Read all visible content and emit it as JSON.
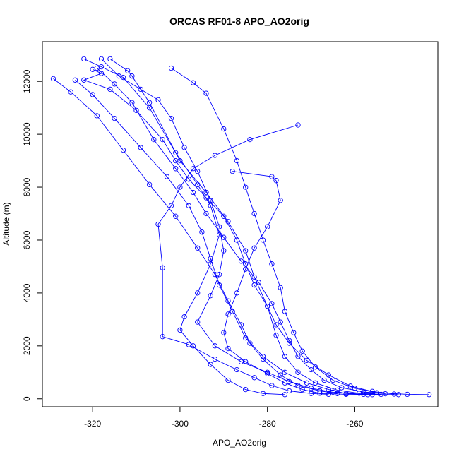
{
  "chart_data": {
    "type": "line",
    "title": "ORCAS RF01-8 APO_AO2orig",
    "xlabel": "APO_AO2orig",
    "ylabel": "Altitude (m)",
    "xlim": [
      -331.5,
      -241
    ],
    "ylim": [
      -300,
      13500
    ],
    "xticks": [
      -320,
      -300,
      -280,
      -260
    ],
    "yticks": [
      0,
      2000,
      4000,
      6000,
      8000,
      10000,
      12000
    ],
    "grid": false,
    "line_color": "#0000ff",
    "marker": "open-circle",
    "series": [
      {
        "values": [
          [
            -320,
            12450
          ],
          [
            -318,
            12300
          ],
          [
            -322,
            12050
          ],
          [
            -316,
            11700
          ],
          [
            -310,
            10900
          ],
          [
            -304,
            9800
          ],
          [
            -301,
            9000
          ],
          [
            -298,
            8300
          ],
          [
            -294,
            7600
          ],
          [
            -290,
            6900
          ],
          [
            -287,
            6000
          ],
          [
            -285,
            5100
          ],
          [
            -283,
            4300
          ],
          [
            -280,
            3500
          ],
          [
            -278,
            2800
          ],
          [
            -275,
            2100
          ],
          [
            -271,
            1450
          ],
          [
            -266,
            900
          ],
          [
            -261,
            480
          ],
          [
            -256,
            280
          ],
          [
            -251,
            180
          ]
        ]
      },
      {
        "values": [
          [
            -329,
            12100
          ],
          [
            -325,
            11600
          ],
          [
            -319,
            10700
          ],
          [
            -313,
            9400
          ],
          [
            -307,
            8100
          ],
          [
            -301,
            6900
          ],
          [
            -296,
            5700
          ],
          [
            -292,
            4700
          ],
          [
            -289,
            3700
          ],
          [
            -286,
            2800
          ],
          [
            -284,
            2100
          ],
          [
            -281,
            1500
          ],
          [
            -277,
            900
          ],
          [
            -273,
            500
          ],
          [
            -268,
            300
          ],
          [
            -264,
            200
          ]
        ]
      },
      {
        "values": [
          [
            -318,
            12850
          ],
          [
            -314,
            12200
          ],
          [
            -309,
            11700
          ],
          [
            -305,
            11300
          ],
          [
            -302,
            10600
          ],
          [
            -299,
            9500
          ],
          [
            -296,
            8600
          ],
          [
            -293,
            7500
          ],
          [
            -291,
            6500
          ],
          [
            -290,
            5600
          ],
          [
            -291,
            4700
          ],
          [
            -293,
            3900
          ],
          [
            -296,
            2900
          ],
          [
            -292,
            2000
          ],
          [
            -286,
            1400
          ],
          [
            -280,
            1000
          ],
          [
            -275,
            650
          ],
          [
            -270,
            400
          ],
          [
            -265,
            250
          ],
          [
            -258,
            170
          ],
          [
            -250,
            160
          ]
        ]
      },
      {
        "values": [
          [
            -302,
            12500
          ],
          [
            -297,
            11950
          ],
          [
            -294,
            11550
          ],
          [
            -290,
            10200
          ],
          [
            -287,
            9000
          ],
          [
            -285,
            8000
          ],
          [
            -283,
            7000
          ],
          [
            -281,
            6000
          ],
          [
            -279,
            5100
          ],
          [
            -277,
            4200
          ],
          [
            -276,
            3300
          ],
          [
            -274,
            2500
          ],
          [
            -272,
            1800
          ],
          [
            -269,
            1200
          ],
          [
            -265,
            700
          ],
          [
            -260,
            400
          ],
          [
            -255,
            230
          ],
          [
            -248,
            170
          ],
          [
            -243,
            160
          ]
        ]
      },
      {
        "values": [
          [
            -273,
            10350
          ],
          [
            -284,
            9800
          ],
          [
            -292,
            9200
          ],
          [
            -297,
            8700
          ],
          [
            -300,
            8000
          ],
          [
            -302,
            7300
          ],
          [
            -305,
            6600
          ],
          [
            -304,
            4950
          ],
          [
            -304,
            2350
          ],
          [
            -298,
            2050
          ],
          [
            -292,
            1500
          ],
          [
            -287,
            1100
          ],
          [
            -283,
            800
          ],
          [
            -279,
            500
          ],
          [
            -275,
            300
          ],
          [
            -270,
            200
          ],
          [
            -266,
            170
          ]
        ]
      },
      {
        "values": [
          [
            -322,
            12850
          ],
          [
            -318,
            12550
          ],
          [
            -313,
            12150
          ],
          [
            -307,
            11000
          ],
          [
            -301,
            9300
          ],
          [
            -296,
            8100
          ],
          [
            -293,
            7300
          ],
          [
            -291,
            6200
          ],
          [
            -293,
            5100
          ],
          [
            -296,
            4000
          ],
          [
            -299,
            3100
          ],
          [
            -300,
            2600
          ],
          [
            -297,
            2000
          ],
          [
            -293,
            1300
          ],
          [
            -289,
            700
          ],
          [
            -285,
            350
          ],
          [
            -281,
            200
          ],
          [
            -276,
            160
          ]
        ]
      },
      {
        "values": [
          [
            -316,
            12850
          ],
          [
            -312,
            12400
          ],
          [
            -311,
            12200
          ],
          [
            -307,
            11200
          ],
          [
            -300,
            9000
          ],
          [
            -294,
            7800
          ],
          [
            -289,
            6700
          ],
          [
            -285,
            5600
          ],
          [
            -283,
            4600
          ],
          [
            -280,
            3500
          ],
          [
            -278,
            2400
          ],
          [
            -276,
            1600
          ],
          [
            -273,
            1000
          ],
          [
            -269,
            600
          ],
          [
            -264,
            330
          ],
          [
            -259,
            210
          ],
          [
            -254,
            170
          ]
        ]
      },
      {
        "values": [
          [
            -324,
            12050
          ],
          [
            -320,
            11500
          ],
          [
            -315,
            10600
          ],
          [
            -309,
            9500
          ],
          [
            -303,
            8400
          ],
          [
            -298,
            7300
          ],
          [
            -295,
            6300
          ],
          [
            -293,
            5300
          ],
          [
            -291,
            4300
          ],
          [
            -288,
            3300
          ],
          [
            -285,
            2300
          ],
          [
            -281,
            1600
          ],
          [
            -276,
            1000
          ],
          [
            -271,
            600
          ],
          [
            -266,
            350
          ],
          [
            -262,
            200
          ],
          [
            -257,
            160
          ]
        ]
      },
      {
        "values": [
          [
            -319,
            12500
          ],
          [
            -315,
            11900
          ],
          [
            -311,
            11200
          ],
          [
            -306,
            9800
          ],
          [
            -301,
            8700
          ],
          [
            -297,
            7800
          ],
          [
            -294,
            7000
          ],
          [
            -290,
            6100
          ],
          [
            -286,
            5200
          ],
          [
            -282,
            4400
          ],
          [
            -279,
            3600
          ],
          [
            -277,
            2900
          ],
          [
            -275,
            2200
          ],
          [
            -273,
            1600
          ],
          [
            -270,
            1100
          ],
          [
            -267,
            700
          ],
          [
            -263,
            420
          ],
          [
            -258,
            260
          ],
          [
            -253,
            190
          ]
        ]
      },
      {
        "values": [
          [
            -288,
            8600
          ],
          [
            -279,
            8400
          ],
          [
            -278,
            8250
          ],
          [
            -277,
            7500
          ],
          [
            -280,
            6500
          ],
          [
            -283,
            5700
          ],
          [
            -285,
            4900
          ],
          [
            -287,
            4000
          ],
          [
            -289,
            3200
          ],
          [
            -290,
            2500
          ],
          [
            -289,
            1900
          ],
          [
            -285,
            1400
          ],
          [
            -280,
            950
          ],
          [
            -276,
            600
          ],
          [
            -272,
            350
          ],
          [
            -268,
            210
          ],
          [
            -262,
            170
          ],
          [
            -256,
            160
          ]
        ]
      }
    ]
  }
}
